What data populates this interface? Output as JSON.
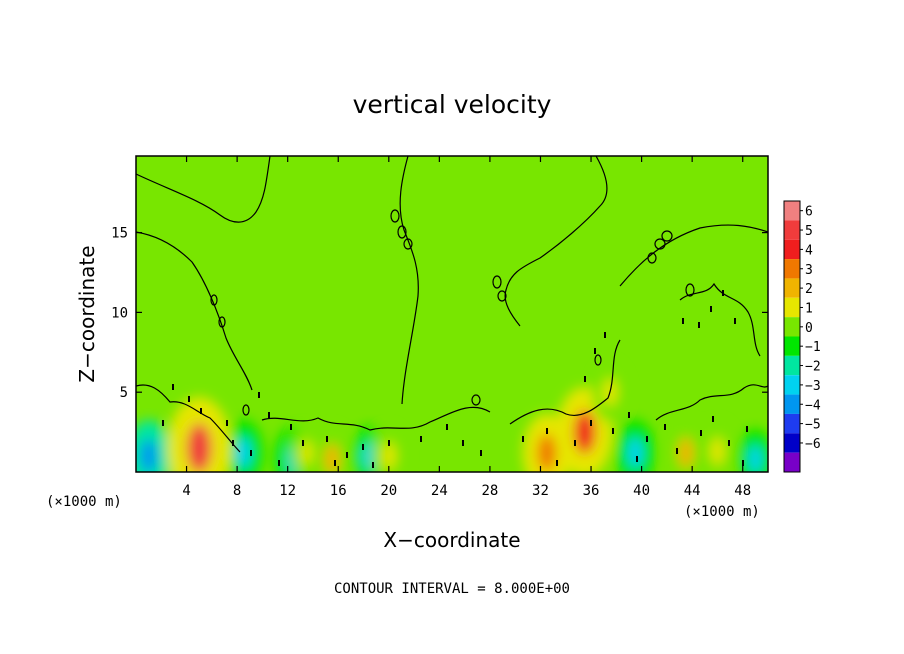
{
  "chart_data": {
    "type": "heatmap",
    "title": "vertical velocity",
    "xlabel": "X−coordinate",
    "ylabel": "Z−coordinate",
    "x_unit_left": "(×1000 m)",
    "x_unit_right": "(×1000 m)",
    "xlim": [
      0,
      50
    ],
    "ylim": [
      0,
      19.8
    ],
    "x_ticks": [
      4,
      8,
      12,
      16,
      20,
      24,
      28,
      32,
      36,
      40,
      44,
      48
    ],
    "x_tick_labels": [
      "4",
      "8",
      "12",
      "16",
      "20",
      "24",
      "28",
      "32",
      "36",
      "40",
      "44",
      "48"
    ],
    "y_ticks": [
      5,
      10,
      15
    ],
    "y_tick_labels": [
      "5",
      "10",
      "15"
    ],
    "annotation": "CONTOUR INTERVAL = 8.000E+00",
    "colorbar": {
      "levels": [
        6,
        5,
        4,
        3,
        2,
        1,
        0,
        -1,
        -2,
        -3,
        -4,
        -5,
        -6
      ],
      "labels": [
        "6",
        "5",
        "4",
        "3",
        "2",
        "1",
        "0",
        "−1",
        "−2",
        "−3",
        "−4",
        "−5",
        "−6"
      ],
      "colors": [
        "#f08080",
        "#f03c3c",
        "#f01e1e",
        "#f07800",
        "#f0b400",
        "#e6e600",
        "#78e600",
        "#00e600",
        "#00e6a0",
        "#00d2f0",
        "#0096f0",
        "#1e3cf0",
        "#0000c8",
        "#7800c8"
      ]
    },
    "background_level": 0,
    "updrafts": [
      {
        "x": 5.0,
        "z": 1.5,
        "w": 5.5
      },
      {
        "x": 13.5,
        "z": 1.2,
        "w": 1.5
      },
      {
        "x": 15.5,
        "z": 0.8,
        "w": 2.5
      },
      {
        "x": 20.0,
        "z": 1.0,
        "w": 2.0
      },
      {
        "x": 32.5,
        "z": 1.2,
        "w": 3.5
      },
      {
        "x": 35.5,
        "z": 2.5,
        "w": 4.5
      },
      {
        "x": 37.5,
        "z": 5.0,
        "w": 2.0
      },
      {
        "x": 43.5,
        "z": 1.2,
        "w": 2.5
      },
      {
        "x": 46.0,
        "z": 1.3,
        "w": 2.0
      }
    ],
    "downdrafts": [
      {
        "x": 1.0,
        "z": 1.0,
        "w": -3.0
      },
      {
        "x": 8.5,
        "z": 1.2,
        "w": -2.5
      },
      {
        "x": 12.5,
        "z": 0.8,
        "w": -2.5
      },
      {
        "x": 18.5,
        "z": 1.0,
        "w": -2.0
      },
      {
        "x": 39.5,
        "z": 1.2,
        "w": -2.5
      },
      {
        "x": 49.0,
        "z": 0.8,
        "w": -2.0
      }
    ]
  }
}
